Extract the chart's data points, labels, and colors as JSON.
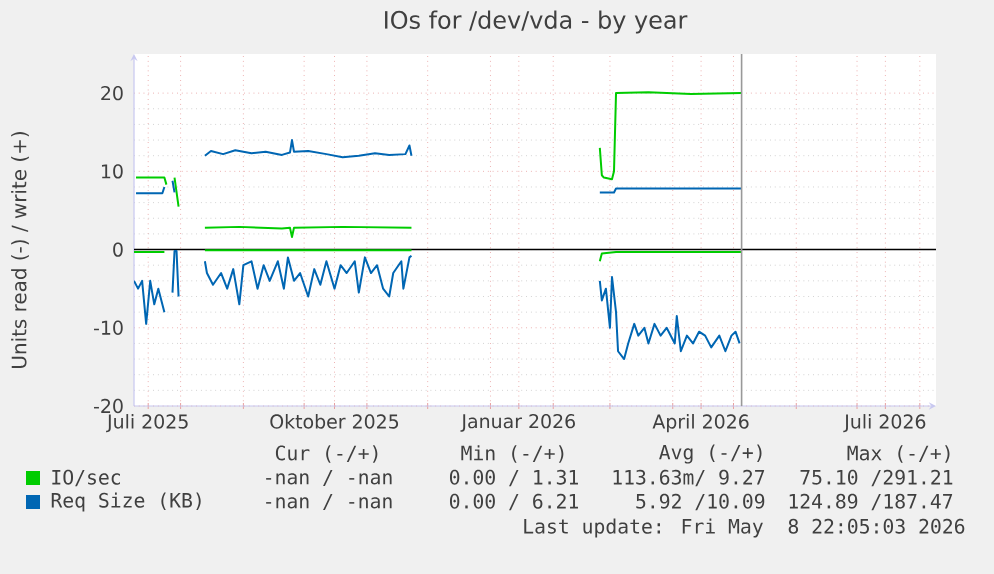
{
  "chart_data": {
    "type": "line",
    "title": "IOs for /dev/vda - by year",
    "ylabel": "Units read (-) / write (+)",
    "xlim": [
      "2025-07-09",
      "2026-08-09"
    ],
    "xticks": [
      {
        "value": "2025-07-16",
        "label": "Juli 2025"
      },
      {
        "value": "2025-08-01",
        "label": null
      },
      {
        "value": "2025-09-01",
        "label": null
      },
      {
        "value": "2025-10-01",
        "label": null
      },
      {
        "value": "2025-10-16",
        "label": "Oktober 2025"
      },
      {
        "value": "2025-11-01",
        "label": null
      },
      {
        "value": "2025-12-01",
        "label": null
      },
      {
        "value": "2026-01-01",
        "label": null
      },
      {
        "value": "2026-01-15",
        "label": "Januar 2026"
      },
      {
        "value": "2026-02-01",
        "label": null
      },
      {
        "value": "2026-03-01",
        "label": null
      },
      {
        "value": "2026-04-01",
        "label": null
      },
      {
        "value": "2026-04-15",
        "label": "April 2026"
      },
      {
        "value": "2026-05-01",
        "label": null
      },
      {
        "value": "2026-06-01",
        "label": null
      },
      {
        "value": "2026-07-01",
        "label": null
      },
      {
        "value": "2026-07-15",
        "label": "Juli 2026"
      },
      {
        "value": "2026-08-01",
        "label": null
      }
    ],
    "ylim": [
      -20,
      25
    ],
    "yticks": [
      -20,
      -10,
      0,
      10,
      20
    ],
    "grid": true,
    "legend": "bottom",
    "ref_lines": [
      {
        "axis": "y",
        "value": 0,
        "color": "#000000"
      },
      {
        "axis": "x",
        "value": "2026-05-05",
        "color": "#999999"
      }
    ],
    "series": [
      {
        "name": "IO/sec",
        "color": "#00cc00",
        "x": [
          "2025-07-10",
          "2025-07-24",
          "2025-07-25",
          "2025-07-26",
          "2025-07-29",
          "2025-07-31",
          "2025-08-01",
          "2025-08-13",
          "2025-08-30",
          "2025-09-20",
          "2025-09-24",
          "2025-09-25",
          "2025-09-26",
          "2025-10-20",
          "2025-11-23",
          "2025-11-24",
          "2026-02-24",
          "2026-02-25",
          "2026-02-26",
          "2026-03-02",
          "2026-03-03",
          "2026-03-04",
          "2026-03-20",
          "2026-04-10",
          "2026-05-05"
        ],
        "values": [
          9.2,
          9.2,
          8.3,
          null,
          9.2,
          5.5,
          null,
          2.8,
          2.9,
          2.7,
          2.8,
          1.6,
          2.8,
          2.9,
          2.8,
          null,
          13,
          9.5,
          9.2,
          9.0,
          10,
          20,
          20.1,
          19.9,
          20.0
        ]
      },
      {
        "color": "#00cc00",
        "x": [
          "2025-07-09",
          "2025-07-24",
          "2025-07-25",
          "2025-08-13",
          "2025-11-23",
          "2025-11-24",
          "2026-02-24",
          "2026-02-25",
          "2026-03-04",
          "2026-05-05"
        ],
        "values": [
          -0.3,
          -0.3,
          null,
          -0.1,
          -0.1,
          null,
          -1.5,
          -0.5,
          -0.3,
          -0.3
        ]
      },
      {
        "name": "Req Size (KB)",
        "color": "#0066b3",
        "x": [
          "2025-07-10",
          "2025-07-23",
          "2025-07-24",
          "2025-07-25",
          "2025-07-28",
          "2025-07-29",
          "2025-07-30",
          "2025-08-13",
          "2025-08-16",
          "2025-08-22",
          "2025-08-28",
          "2025-09-05",
          "2025-09-12",
          "2025-09-20",
          "2025-09-24",
          "2025-09-25",
          "2025-09-26",
          "2025-10-03",
          "2025-10-12",
          "2025-10-20",
          "2025-10-28",
          "2025-11-05",
          "2025-11-12",
          "2025-11-20",
          "2025-11-22",
          "2025-11-23",
          "2025-11-24",
          "2026-02-24",
          "2026-03-03",
          "2026-03-04",
          "2026-05-05"
        ],
        "values": [
          7.2,
          7.2,
          8.0,
          null,
          8.8,
          7.3,
          null,
          12.0,
          12.6,
          12.2,
          12.7,
          12.3,
          12.5,
          12.1,
          12.4,
          14.0,
          12.5,
          12.6,
          12.2,
          11.8,
          12.0,
          12.3,
          12.1,
          12.2,
          13.3,
          12.0,
          null,
          7.3,
          7.3,
          7.8,
          7.8
        ]
      },
      {
        "color": "#0066b3",
        "x": [
          "2025-07-09",
          "2025-07-11",
          "2025-07-13",
          "2025-07-15",
          "2025-07-17",
          "2025-07-19",
          "2025-07-21",
          "2025-07-24",
          "2025-07-26",
          "2025-07-28",
          "2025-07-29",
          "2025-07-30",
          "2025-07-31",
          "2025-08-01",
          "2025-08-13",
          "2025-08-14",
          "2025-08-17",
          "2025-08-21",
          "2025-08-24",
          "2025-08-27",
          "2025-08-30",
          "2025-09-01",
          "2025-09-05",
          "2025-09-08",
          "2025-09-11",
          "2025-09-14",
          "2025-09-18",
          "2025-09-21",
          "2025-09-23",
          "2025-09-26",
          "2025-09-29",
          "2025-10-03",
          "2025-10-06",
          "2025-10-09",
          "2025-10-12",
          "2025-10-16",
          "2025-10-19",
          "2025-10-22",
          "2025-10-26",
          "2025-10-28",
          "2025-10-31",
          "2025-11-03",
          "2025-11-06",
          "2025-11-09",
          "2025-11-12",
          "2025-11-14",
          "2025-11-18",
          "2025-11-19",
          "2025-11-22",
          "2025-11-23",
          "2025-11-24",
          "2026-02-24",
          "2026-02-25",
          "2026-02-27",
          "2026-03-01",
          "2026-03-02",
          "2026-03-04",
          "2026-03-05",
          "2026-03-08",
          "2026-03-10",
          "2026-03-13",
          "2026-03-15",
          "2026-03-18",
          "2026-03-20",
          "2026-03-23",
          "2026-03-26",
          "2026-03-29",
          "2026-04-02",
          "2026-04-03",
          "2026-04-05",
          "2026-04-08",
          "2026-04-11",
          "2026-04-14",
          "2026-04-17",
          "2026-04-20",
          "2026-04-24",
          "2026-04-27",
          "2026-04-30",
          "2026-05-02",
          "2026-05-04"
        ],
        "values": [
          -4,
          -5,
          -4,
          -9.5,
          -4,
          -7,
          -5,
          -8,
          null,
          -5.5,
          -0.2,
          -0.2,
          -6,
          null,
          -1.5,
          -3,
          -4.5,
          -3,
          -5,
          -2.5,
          -7,
          -2,
          -1.5,
          -5,
          -2,
          -4,
          -1.5,
          -5,
          -1,
          -4,
          -3,
          -6,
          -2.5,
          -4.5,
          -1.5,
          -5,
          -2,
          -3,
          -1.5,
          -5.5,
          -1,
          -3,
          -2,
          -5,
          -6,
          -3,
          -1.5,
          -5,
          -1,
          -0.8,
          null,
          -4,
          -6.5,
          -5,
          -10,
          -3.5,
          -8,
          -13,
          -14,
          -12,
          -9.5,
          -11,
          -10,
          -12,
          -9.5,
          -11,
          -10,
          -12,
          -8.5,
          -13,
          -11,
          -12,
          -10.5,
          -11,
          -12.5,
          -11,
          -13,
          -11,
          -10.5,
          -12
        ]
      }
    ],
    "annotations": [
      "Cur (-/+)",
      "Min (-/+)",
      "Avg (-/+)",
      "Max (-/+)",
      "-nan / -nan",
      "0.00 / 1.31",
      "113.63m/ 9.27",
      "75.10 /291.21",
      "-nan / -nan",
      "0.00 / 6.21",
      "5.92 /10.09",
      "124.89 /187.47",
      "Last update: Fri May  8 22:05:03 2026"
    ]
  }
}
